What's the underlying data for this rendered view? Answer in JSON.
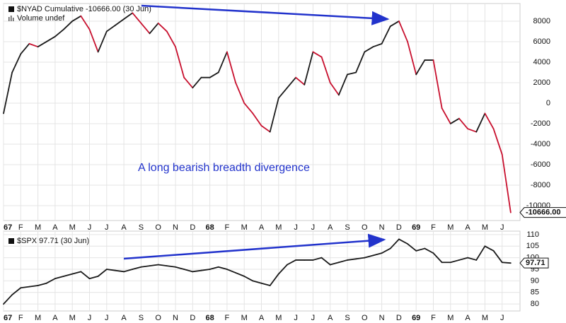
{
  "chart_data": [
    {
      "type": "line",
      "title": "$NYAD Cumulative -10666.00 (30 Jun)",
      "subtitle": "Volume undef",
      "annotation": "A long bearish breadth divergence",
      "last_value_label": "-10666.00",
      "categories": [
        "67",
        null,
        "F",
        null,
        "M",
        null,
        "A",
        null,
        "M",
        null,
        "J",
        null,
        "J",
        null,
        "A",
        null,
        "S",
        null,
        "O",
        null,
        "N",
        null,
        "D",
        null,
        "68",
        null,
        "F",
        null,
        "M",
        null,
        "A",
        null,
        "M",
        null,
        "J",
        null,
        "J",
        null,
        "A",
        null,
        "S",
        null,
        "O",
        null,
        "N",
        null,
        "D",
        null,
        "69",
        null,
        "F",
        null,
        "M",
        null,
        "A",
        null,
        "M",
        null,
        "J",
        null
      ],
      "series": [
        {
          "name": "$NYAD",
          "up_color": "#1a1a1a",
          "down_color": "#c8102e",
          "values": [
            -1000,
            3000,
            4800,
            5800,
            5500,
            6000,
            6500,
            7200,
            8000,
            8500,
            7200,
            5000,
            7000,
            7600,
            8200,
            8800,
            7800,
            6800,
            7800,
            7000,
            5500,
            2500,
            1500,
            2500,
            2500,
            3000,
            5000,
            2000,
            0,
            -1000,
            -2200,
            -2800,
            500,
            1500,
            2500,
            1800,
            5000,
            4500,
            2000,
            800,
            2800,
            3000,
            5000,
            5500,
            5800,
            7500,
            8000,
            6000,
            2800,
            4200,
            4200,
            -500,
            -2000,
            -1500,
            -2500,
            -2800,
            -1000,
            -2500,
            -5000,
            -10666
          ]
        }
      ],
      "ylim": [
        -11450,
        9720
      ],
      "yticks": [
        -10000,
        -8000,
        -6000,
        -4000,
        -2000,
        0,
        2000,
        4000,
        6000,
        8000
      ],
      "grid": true
    },
    {
      "type": "line",
      "title": "$SPX 97.71 (30 Jun)",
      "last_value_label": "97.71",
      "categories": [
        "67",
        null,
        "F",
        null,
        "M",
        null,
        "A",
        null,
        "M",
        null,
        "J",
        null,
        "J",
        null,
        "A",
        null,
        "S",
        null,
        "O",
        null,
        "N",
        null,
        "D",
        null,
        "68",
        null,
        "F",
        null,
        "M",
        null,
        "A",
        null,
        "M",
        null,
        "J",
        null,
        "J",
        null,
        "A",
        null,
        "S",
        null,
        "O",
        null,
        "N",
        null,
        "D",
        null,
        "69",
        null,
        "F",
        null,
        "M",
        null,
        "A",
        null,
        "M",
        null,
        "J",
        null
      ],
      "series": [
        {
          "name": "$SPX",
          "color": "#1a1a1a",
          "values": [
            80,
            84,
            87,
            87.5,
            88,
            89,
            91,
            92,
            93,
            94,
            91,
            92,
            95,
            94.5,
            94,
            95,
            96,
            96.5,
            97,
            96.5,
            96,
            95,
            94,
            94.5,
            95,
            96,
            95,
            93.5,
            92,
            90,
            89,
            88,
            93,
            97,
            99,
            99,
            99,
            100,
            97,
            98,
            99,
            99.5,
            100,
            101,
            102,
            104,
            108,
            106,
            103,
            104,
            102,
            98,
            98,
            99,
            100,
            99,
            105,
            103,
            98,
            97.71
          ]
        }
      ],
      "ylim": [
        77,
        111.5
      ],
      "yticks": [
        80,
        85,
        90,
        95,
        100,
        105,
        110
      ],
      "grid": true
    }
  ]
}
